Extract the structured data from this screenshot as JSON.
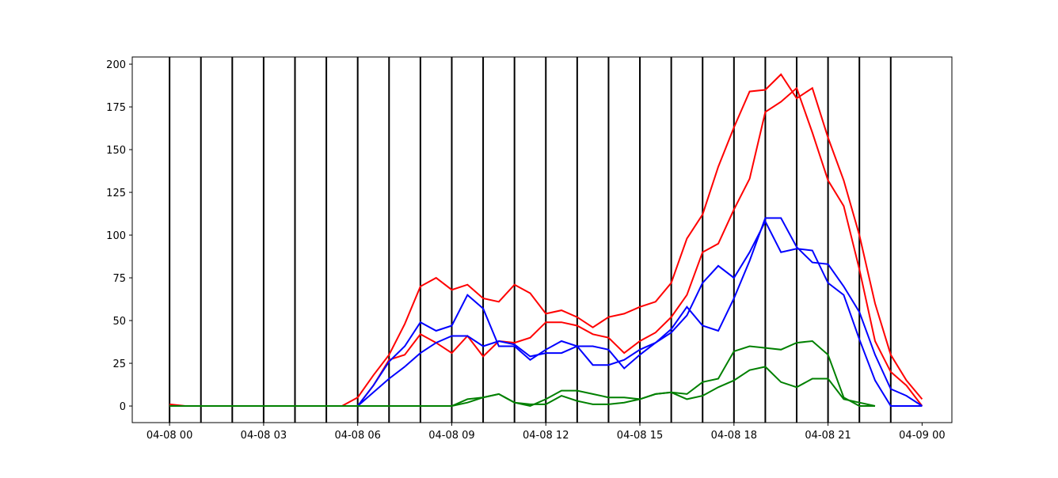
{
  "chart_data": {
    "type": "line",
    "x": [
      0,
      0.5,
      1,
      1.5,
      2,
      2.5,
      3,
      3.5,
      4,
      4.5,
      5,
      5.5,
      6,
      6.5,
      7,
      7.5,
      8,
      8.5,
      9,
      9.5,
      10,
      10.5,
      11,
      11.5,
      12,
      12.5,
      13,
      13.5,
      14,
      14.5,
      15,
      15.5,
      16,
      16.5,
      17,
      17.5,
      18,
      18.5,
      19,
      19.5,
      20,
      20.5,
      21,
      21.5,
      22,
      22.5,
      23,
      23.5,
      24
    ],
    "series": [
      {
        "color": "#ff0000",
        "values": [
          1,
          0,
          0,
          0,
          0,
          0,
          0,
          0,
          0,
          0,
          0,
          0,
          5,
          18,
          30,
          48,
          70,
          75,
          68,
          71,
          63,
          61,
          71,
          66,
          54,
          56,
          52,
          46,
          52,
          54,
          58,
          61,
          72,
          98,
          112,
          140,
          163,
          184,
          185,
          194,
          180,
          186,
          157,
          132,
          100,
          60,
          30,
          15,
          4
        ]
      },
      {
        "color": "#ff0000",
        "values": [
          0,
          0,
          0,
          0,
          0,
          0,
          0,
          0,
          0,
          0,
          0,
          0,
          0,
          12,
          27,
          30,
          42,
          37,
          31,
          41,
          29,
          38,
          37,
          40,
          49,
          49,
          47,
          42,
          40,
          31,
          38,
          43,
          52,
          65,
          90,
          95,
          115,
          133,
          172,
          178,
          186,
          160,
          132,
          117,
          80,
          38,
          20,
          12,
          0
        ]
      },
      {
        "color": "#0000ff",
        "values": [
          0,
          0,
          0,
          0,
          0,
          0,
          0,
          0,
          0,
          0,
          0,
          0,
          0,
          12,
          26,
          35,
          49,
          44,
          47,
          65,
          57,
          35,
          35,
          27,
          33,
          38,
          35,
          35,
          33,
          22,
          30,
          37,
          45,
          58,
          47,
          44,
          63,
          85,
          110,
          110,
          93,
          84,
          83,
          70,
          55,
          30,
          10,
          6,
          0
        ]
      },
      {
        "color": "#0000ff",
        "values": [
          0,
          0,
          0,
          0,
          0,
          0,
          0,
          0,
          0,
          0,
          0,
          0,
          0,
          8,
          16,
          23,
          31,
          37,
          41,
          41,
          35,
          38,
          36,
          29,
          31,
          31,
          35,
          24,
          24,
          27,
          33,
          37,
          43,
          53,
          72,
          82,
          75,
          90,
          108,
          90,
          92,
          91,
          72,
          65,
          39,
          15,
          0,
          0,
          0
        ]
      },
      {
        "color": "#008000",
        "values": [
          0,
          0,
          0,
          0,
          0,
          0,
          0,
          0,
          0,
          0,
          0,
          0,
          0,
          0,
          0,
          0,
          0,
          0,
          0,
          4,
          5,
          7,
          2,
          0,
          4,
          9,
          9,
          7,
          5,
          5,
          4,
          7,
          8,
          7,
          14,
          16,
          32,
          35,
          34,
          33,
          37,
          38,
          30,
          5,
          0,
          0,
          null,
          null,
          null
        ]
      },
      {
        "color": "#008000",
        "values": [
          0,
          0,
          0,
          0,
          0,
          0,
          0,
          0,
          0,
          0,
          0,
          0,
          0,
          0,
          0,
          0,
          0,
          0,
          0,
          2,
          5,
          7,
          2,
          1,
          1,
          6,
          3,
          1,
          1,
          2,
          4,
          7,
          8,
          4,
          6,
          11,
          15,
          21,
          23,
          14,
          11,
          16,
          16,
          4,
          2,
          0,
          null,
          null,
          null
        ]
      }
    ],
    "vlines": [
      0,
      1,
      2,
      3,
      4,
      5,
      6,
      7,
      8,
      9,
      10,
      11,
      12,
      13,
      14,
      15,
      16,
      17,
      18,
      19,
      20,
      21,
      22,
      23
    ],
    "vline_color": "#000000",
    "xlim": [
      -1.19,
      24.95
    ],
    "ylim": [
      -9.7,
      204.2
    ],
    "xticks": [
      {
        "value": 0,
        "label": "04-08 00"
      },
      {
        "value": 3,
        "label": "04-08 03"
      },
      {
        "value": 6,
        "label": "04-08 06"
      },
      {
        "value": 9,
        "label": "04-08 09"
      },
      {
        "value": 12,
        "label": "04-08 12"
      },
      {
        "value": 15,
        "label": "04-08 15"
      },
      {
        "value": 18,
        "label": "04-08 18"
      },
      {
        "value": 21,
        "label": "04-08 21"
      },
      {
        "value": 24,
        "label": "04-09 00"
      }
    ],
    "yticks": [
      0,
      25,
      50,
      75,
      100,
      125,
      150,
      175,
      200
    ]
  }
}
